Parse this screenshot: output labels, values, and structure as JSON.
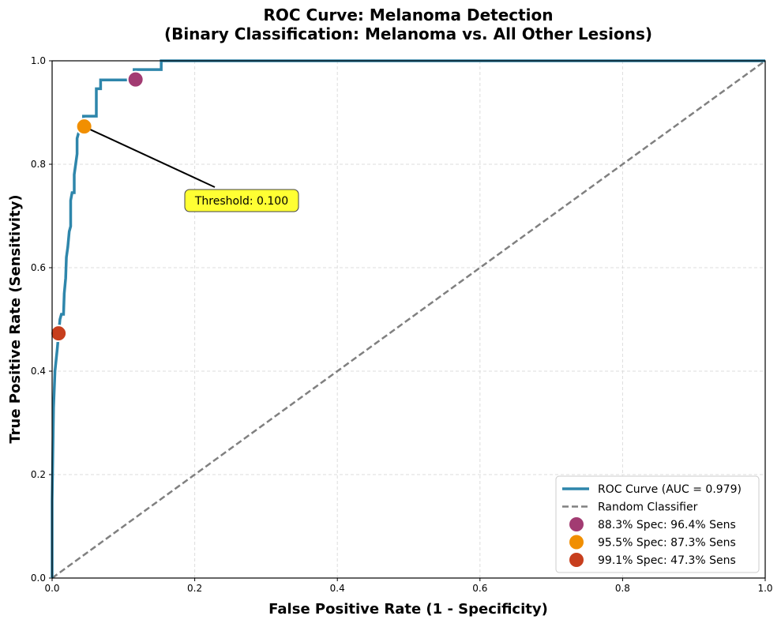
{
  "chart_data": {
    "type": "line",
    "title": "ROC Curve: Melanoma Detection",
    "subtitle": "(Binary Classification: Melanoma vs. All Other Lesions)",
    "xlabel": "False Positive Rate (1 - Specificity)",
    "ylabel": "True Positive Rate (Sensitivity)",
    "xlim": [
      0,
      1
    ],
    "ylim": [
      0,
      1
    ],
    "xticks": [
      "0.0",
      "0.2",
      "0.4",
      "0.6",
      "0.8",
      "1.0"
    ],
    "yticks": [
      "0.0",
      "0.2",
      "0.4",
      "0.6",
      "0.8",
      "1.0"
    ],
    "grid": true,
    "legend_position": "bottom-right",
    "series": [
      {
        "name": "ROC Curve (AUC = 0.979)",
        "color": "#2e86ab",
        "x": [
          0,
          0,
          0.002,
          0.004,
          0.007,
          0.009,
          0.011,
          0.013,
          0.016,
          0.017,
          0.019,
          0.02,
          0.022,
          0.024,
          0.026,
          0.026,
          0.028,
          0.031,
          0.031,
          0.033,
          0.035,
          0.035,
          0.037,
          0.04,
          0.044,
          0.044,
          0.062,
          0.062,
          0.068,
          0.068,
          0.115,
          0.115,
          0.153,
          0.153,
          1
        ],
        "y": [
          0,
          0.15,
          0.33,
          0.4,
          0.44,
          0.47,
          0.5,
          0.51,
          0.51,
          0.55,
          0.58,
          0.62,
          0.64,
          0.67,
          0.68,
          0.73,
          0.745,
          0.745,
          0.78,
          0.8,
          0.82,
          0.85,
          0.86,
          0.87,
          0.873,
          0.893,
          0.893,
          0.946,
          0.946,
          0.963,
          0.963,
          0.983,
          0.983,
          1,
          1
        ]
      },
      {
        "name": "Random Classifier",
        "color": "#808080",
        "x": [
          0,
          1
        ],
        "y": [
          0,
          1
        ]
      }
    ],
    "points": [
      {
        "name": "88.3% Spec: 96.4% Sens",
        "x": 0.117,
        "y": 0.964,
        "color": "#a23b72"
      },
      {
        "name": "95.5% Spec: 87.3% Sens",
        "x": 0.045,
        "y": 0.873,
        "color": "#f18f01"
      },
      {
        "name": "99.1% Spec: 47.3% Sens",
        "x": 0.009,
        "y": 0.473,
        "color": "#c73e1d"
      }
    ],
    "annotation": {
      "text": "Threshold: 0.100",
      "x": 0.045,
      "y": 0.873,
      "text_x": 0.19,
      "text_y": 0.73,
      "bg": "#ffff33"
    }
  }
}
